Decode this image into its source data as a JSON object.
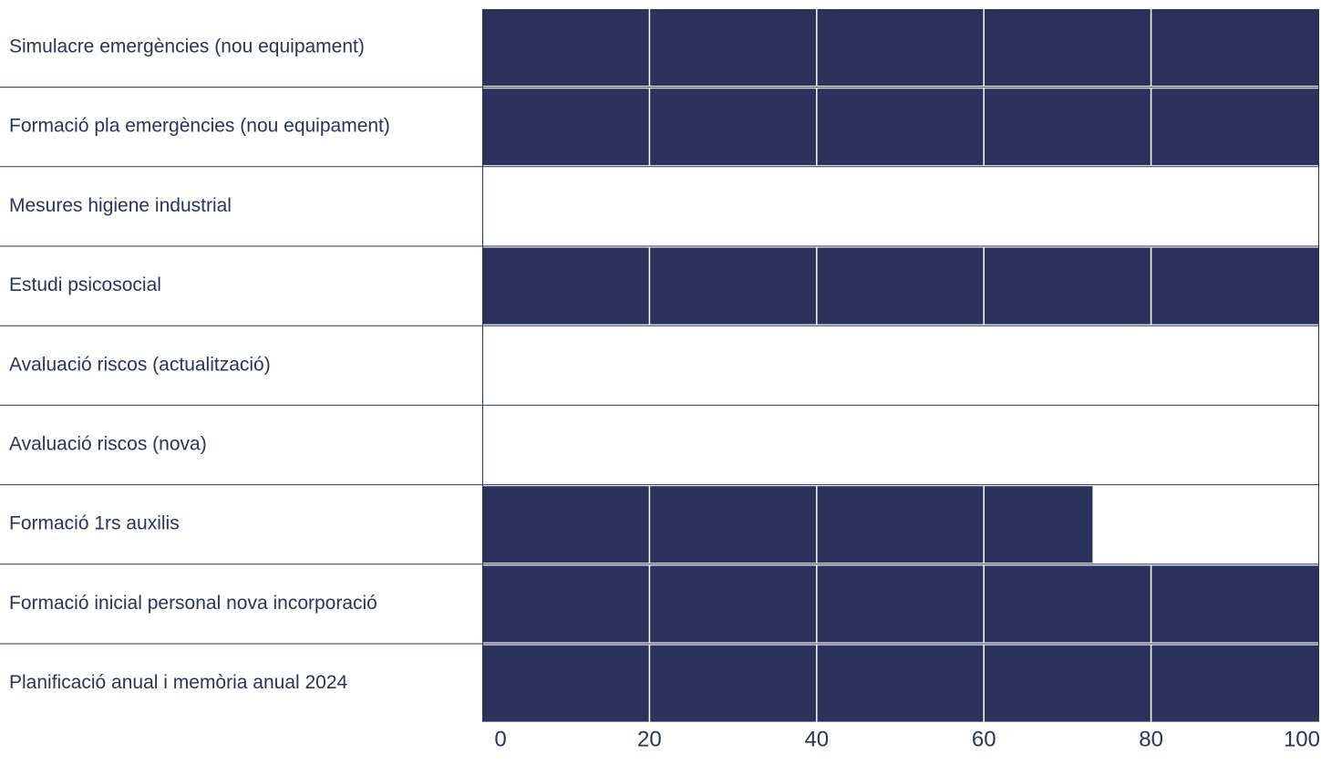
{
  "chart_data": {
    "type": "bar",
    "orientation": "horizontal",
    "categories": [
      "Simulacre emergències (nou equipament)",
      "Formació pla emergències (nou equipament)",
      "Mesures higiene industrial",
      "Estudi psicosocial",
      "Avaluació riscos (actualització)",
      "Avaluació riscos (nova)",
      "Formació 1rs auxilis",
      "Formació inicial personal nova incorporació",
      "Planificació anual i memòria anual 2024"
    ],
    "values": [
      100,
      100,
      0,
      100,
      0,
      0,
      73,
      100,
      100
    ],
    "xlim": [
      0,
      100
    ],
    "x_ticks": [
      "0",
      "20",
      "40",
      "60",
      "80",
      "100"
    ],
    "title": "",
    "xlabel": "",
    "ylabel": "",
    "grid": true,
    "legend": "none",
    "colors": {
      "bar": "#2b335c",
      "separator": "#2b335c",
      "text": "#2b335c",
      "grid": "#ffffff",
      "background": "#ffffff"
    }
  }
}
